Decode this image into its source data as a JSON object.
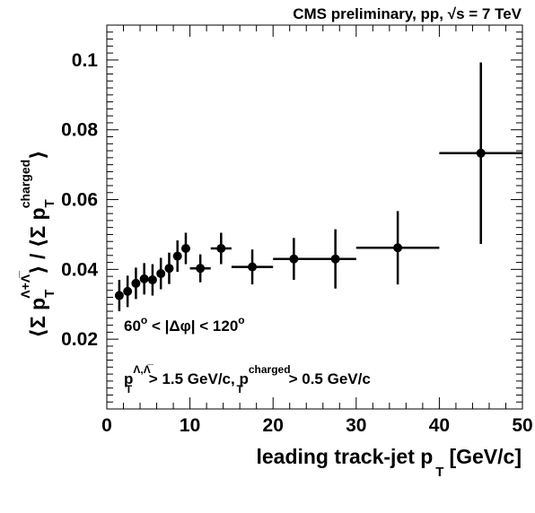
{
  "chart_data": {
    "type": "scatter",
    "header": "CMS preliminary, pp, √s = 7 TeV",
    "xlabel": {
      "main": "leading track-jet p",
      "sub": "T",
      "unit": "[GeV/c]"
    },
    "ylabel": {
      "open": "⟨Σ p",
      "sub": "T",
      "sup": "Λ+Λ̅",
      "middle": "⟩ / ⟨Σ p",
      "sub2": "T",
      "sup2": "charged",
      "close": "⟩"
    },
    "xlim": [
      0,
      50
    ],
    "ylim": [
      0,
      0.11
    ],
    "xticks": [
      "0",
      "10",
      "20",
      "30",
      "40",
      "50"
    ],
    "yticks": [
      "0.02",
      "0.04",
      "0.06",
      "0.08",
      "0.1"
    ],
    "annotations": [
      {
        "parts": [
          "60",
          "o",
          " < |Δφ| < 120",
          "o"
        ]
      },
      {
        "parts": [
          "p",
          "Λ,Λ̅",
          "T",
          " > 1.5 GeV/c, p",
          "charged",
          "T",
          " > 0.5 GeV/c"
        ]
      }
    ],
    "points": [
      {
        "x": 1.5,
        "y": 0.0325,
        "xerr": 0.5,
        "yerr": 0.0045
      },
      {
        "x": 2.5,
        "y": 0.0337,
        "xerr": 0.5,
        "yerr": 0.0045
      },
      {
        "x": 3.5,
        "y": 0.036,
        "xerr": 0.5,
        "yerr": 0.0045
      },
      {
        "x": 4.5,
        "y": 0.0373,
        "xerr": 0.5,
        "yerr": 0.0045
      },
      {
        "x": 5.5,
        "y": 0.037,
        "xerr": 0.5,
        "yerr": 0.0045
      },
      {
        "x": 6.5,
        "y": 0.0388,
        "xerr": 0.5,
        "yerr": 0.0045
      },
      {
        "x": 7.5,
        "y": 0.0403,
        "xerr": 0.5,
        "yerr": 0.0045
      },
      {
        "x": 8.5,
        "y": 0.0438,
        "xerr": 0.5,
        "yerr": 0.0045
      },
      {
        "x": 9.5,
        "y": 0.046,
        "xerr": 0.5,
        "yerr": 0.0045
      },
      {
        "x": 11.25,
        "y": 0.0403,
        "xerr": 1.25,
        "yerr": 0.004
      },
      {
        "x": 13.75,
        "y": 0.046,
        "xerr": 1.25,
        "yerr": 0.0045
      },
      {
        "x": 17.5,
        "y": 0.0407,
        "xerr": 2.5,
        "yerr": 0.005
      },
      {
        "x": 22.5,
        "y": 0.043,
        "xerr": 2.5,
        "yerr": 0.006
      },
      {
        "x": 27.5,
        "y": 0.043,
        "xerr": 2.5,
        "yerr": 0.0085
      },
      {
        "x": 35.0,
        "y": 0.0462,
        "xerr": 5.0,
        "yerr": 0.0105
      },
      {
        "x": 45.0,
        "y": 0.0733,
        "xerr": 5.0,
        "yerr": 0.026
      }
    ]
  }
}
